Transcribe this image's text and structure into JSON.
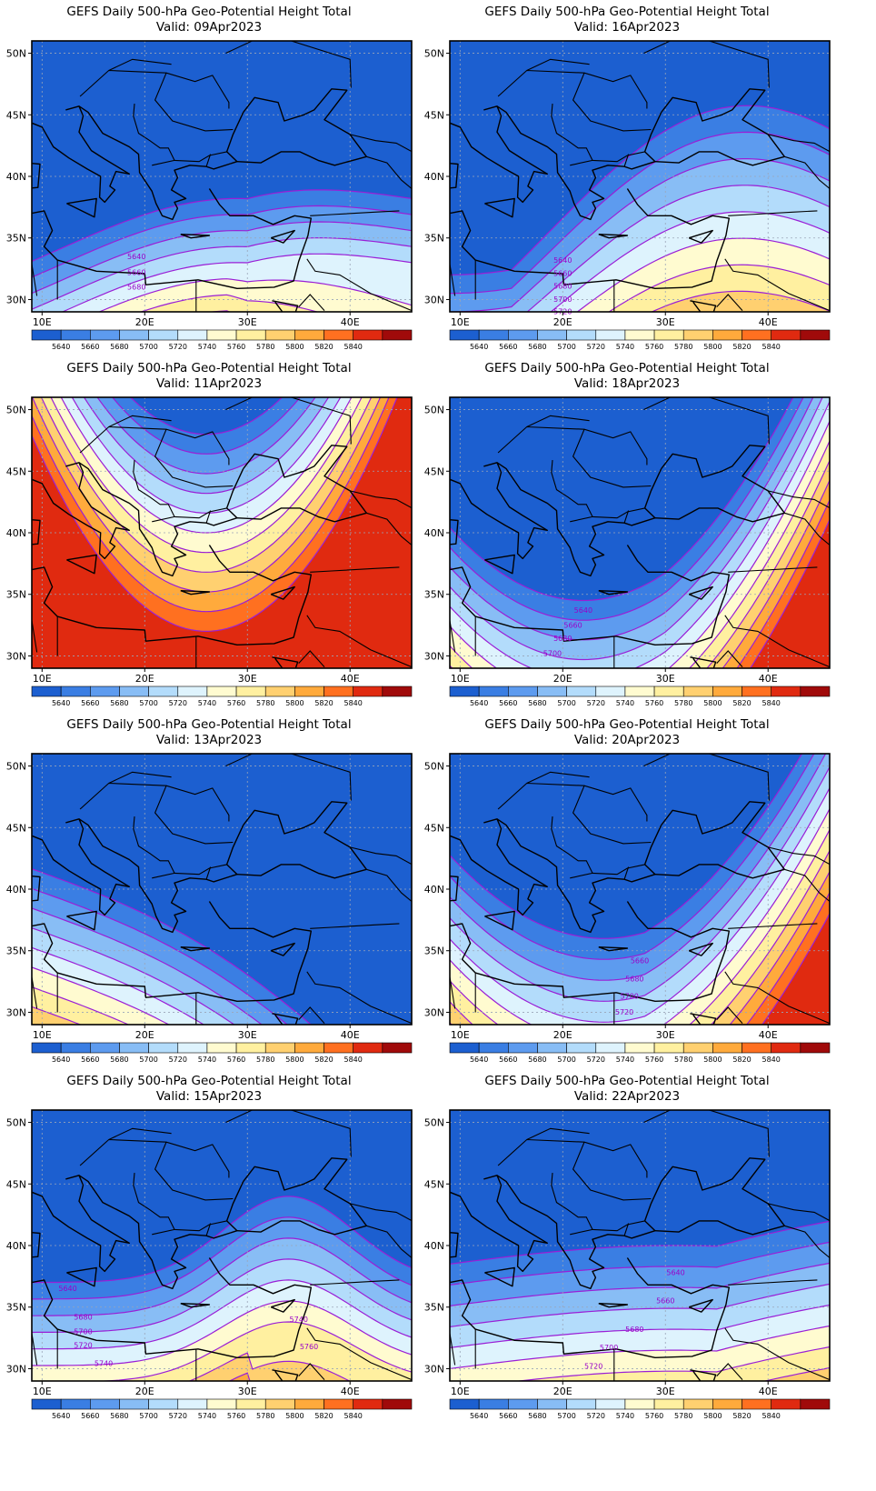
{
  "colorbar": {
    "levels": [
      "5640",
      "5660",
      "5680",
      "5700",
      "5720",
      "5740",
      "5760",
      "5780",
      "5800",
      "5820",
      "5840"
    ],
    "colors": [
      "#1c5fd0",
      "#3a7ee3",
      "#5d9bef",
      "#88bdf5",
      "#b3dcfb",
      "#def3fd",
      "#fffbd0",
      "#fff0a0",
      "#ffd070",
      "#ffaa3c",
      "#ff7020",
      "#e02a10",
      "#a00a0a"
    ]
  },
  "lon_labels": [
    "10E",
    "20E",
    "30E",
    "40E"
  ],
  "lat_labels": [
    "50N",
    "45N",
    "40N",
    "35N",
    "30N"
  ],
  "panels": [
    {
      "title": "GEFS Daily 500-hPa Geo-Potential Height Total",
      "valid": "Valid: 09Apr2023",
      "contour_labels": [
        {
          "t": "5640",
          "lon": 19.2,
          "lat": 33.3
        },
        {
          "t": "5660",
          "lon": 19.2,
          "lat": 32.0
        },
        {
          "t": "5680",
          "lon": 19.2,
          "lat": 30.8
        }
      ]
    },
    {
      "title": "GEFS Daily 500-hPa Geo-Potential Height Total",
      "valid": "Valid: 16Apr2023",
      "contour_labels": [
        {
          "t": "5640",
          "lon": 20.0,
          "lat": 33.0
        },
        {
          "t": "5660",
          "lon": 20.0,
          "lat": 31.9
        },
        {
          "t": "5680",
          "lon": 20.0,
          "lat": 30.9
        },
        {
          "t": "5700",
          "lon": 20.0,
          "lat": 29.8
        },
        {
          "t": "5720",
          "lon": 20.0,
          "lat": 28.8
        }
      ]
    },
    {
      "title": "GEFS Daily 500-hPa Geo-Potential Height Total",
      "valid": "Valid: 11Apr2023",
      "contour_labels": []
    },
    {
      "title": "GEFS Daily 500-hPa Geo-Potential Height Total",
      "valid": "Valid: 18Apr2023",
      "contour_labels": [
        {
          "t": "5640",
          "lon": 22.0,
          "lat": 33.5
        },
        {
          "t": "5660",
          "lon": 21.0,
          "lat": 32.3
        },
        {
          "t": "5680",
          "lon": 20.0,
          "lat": 31.2
        },
        {
          "t": "5700",
          "lon": 19.0,
          "lat": 30.0
        }
      ]
    },
    {
      "title": "GEFS Daily 500-hPa Geo-Potential Height Total",
      "valid": "Valid: 13Apr2023",
      "contour_labels": []
    },
    {
      "title": "GEFS Daily 500-hPa Geo-Potential Height Total",
      "valid": "Valid: 20Apr2023",
      "contour_labels": [
        {
          "t": "5660",
          "lon": 27.5,
          "lat": 34.0
        },
        {
          "t": "5680",
          "lon": 27.0,
          "lat": 32.5
        },
        {
          "t": "5700",
          "lon": 26.5,
          "lat": 31.1
        },
        {
          "t": "5720",
          "lon": 26.0,
          "lat": 29.8
        }
      ]
    },
    {
      "title": "GEFS Daily 500-hPa Geo-Potential Height Total",
      "valid": "Valid: 15Apr2023",
      "contour_labels": [
        {
          "t": "5640",
          "lon": 12.5,
          "lat": 36.3
        },
        {
          "t": "5680",
          "lon": 14.0,
          "lat": 34.0
        },
        {
          "t": "5700",
          "lon": 14.0,
          "lat": 32.8
        },
        {
          "t": "5720",
          "lon": 14.0,
          "lat": 31.7
        },
        {
          "t": "5740",
          "lon": 16.0,
          "lat": 30.2
        },
        {
          "t": "5740",
          "lon": 35.0,
          "lat": 33.8
        },
        {
          "t": "5760",
          "lon": 36.0,
          "lat": 31.6
        }
      ]
    },
    {
      "title": "GEFS Daily 500-hPa Geo-Potential Height Total",
      "valid": "Valid: 22Apr2023",
      "contour_labels": [
        {
          "t": "5640",
          "lon": 31.0,
          "lat": 37.6
        },
        {
          "t": "5660",
          "lon": 30.0,
          "lat": 35.3
        },
        {
          "t": "5680",
          "lon": 27.0,
          "lat": 33.0
        },
        {
          "t": "5700",
          "lon": 24.5,
          "lat": 31.5
        },
        {
          "t": "5720",
          "lon": 23.0,
          "lat": 30.0
        }
      ]
    }
  ]
}
